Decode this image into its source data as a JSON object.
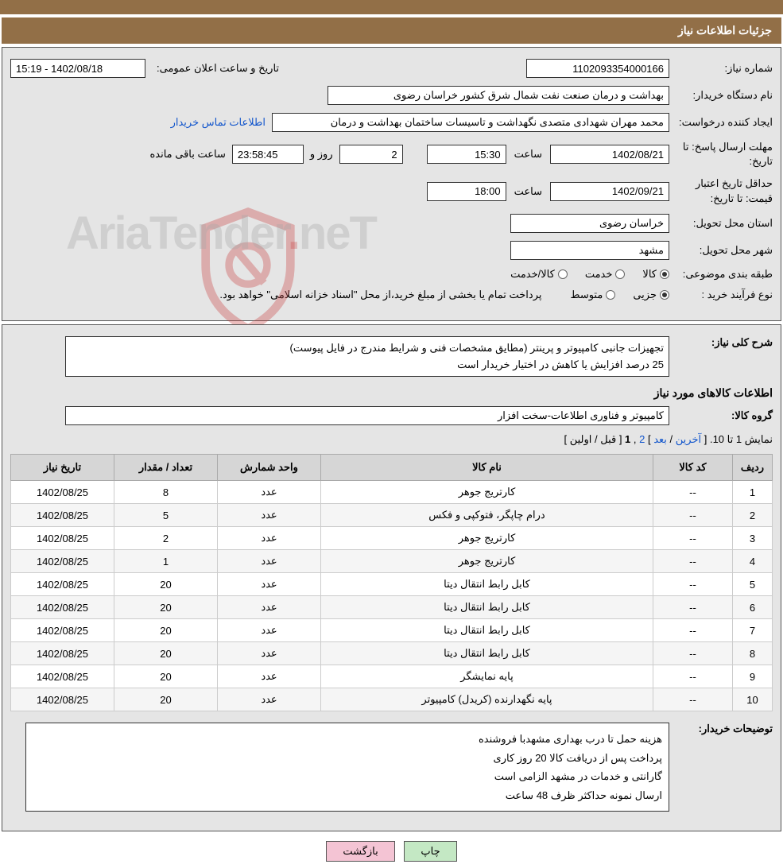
{
  "header": {
    "title": "جزئیات اطلاعات نیاز"
  },
  "labels": {
    "need_no": "شماره نیاز:",
    "announce_dt": "تاریخ و ساعت اعلان عمومی:",
    "buyer_org": "نام دستگاه خریدار:",
    "requester": "ایجاد کننده درخواست:",
    "contact_link": "اطلاعات تماس خریدار",
    "deadline": "مهلت ارسال پاسخ:",
    "to_date": "تا تاریخ:",
    "hour": "ساعت",
    "days_and": "روز و",
    "time_remaining": "ساعت باقی مانده",
    "min_validity": "حداقل تاریخ اعتبار قیمت:",
    "province": "استان محل تحویل:",
    "city": "شهر محل تحویل:",
    "category": "طبقه بندی موضوعی:",
    "cat_goods": "کالا",
    "cat_service": "خدمت",
    "cat_goods_service": "کالا/خدمت",
    "purchase_type": "نوع فرآیند خرید :",
    "pt_minor": "جزیی",
    "pt_medium": "متوسط",
    "payment_note": "پرداخت تمام یا بخشی از مبلغ خرید،از محل \"اسناد خزانه اسلامی\" خواهد بود.",
    "need_desc": "شرح کلی نیاز:",
    "goods_info_title": "اطلاعات کالاهای مورد نیاز",
    "goods_group": "گروه کالا:",
    "buyer_notes": "توضیحات خریدار:"
  },
  "fields": {
    "need_no": "1102093354000166",
    "announce_dt": "15:19 - 1402/08/18",
    "buyer_org": "بهداشت و درمان صنعت نفت شمال شرق کشور    خراسان رضوی",
    "requester": "محمد مهران شهدادی متصدی نگهداشت و تاسیسات ساختمان بهداشت و درمان",
    "deadline_date": "1402/08/21",
    "deadline_time": "15:30",
    "remaining_days": "2",
    "remaining_time": "23:58:45",
    "validity_date": "1402/09/21",
    "validity_time": "18:00",
    "province": "خراسان رضوی",
    "city": "مشهد",
    "need_desc": "تجهیزات جانبی  کامپیوتر و پرینتر (مطایق مشخصات فنی و شرایط مندرج در فایل پیوست)\n25 درصد افزایش یا کاهش در اختیار خریدار است",
    "goods_group": "کامپیوتر و فناوری اطلاعات-سخت افزار",
    "buyer_notes": "هزینه حمل تا درب بهداری مشهدبا فروشنده\nپرداخت پس از دریافت کالا  20 روز کاری\nگارانتی و خدمات در مشهد الزامی است\nارسال نمونه  حداکثر ظرف 48 ساعت"
  },
  "pagination": {
    "text_prefix": "نمایش 1 تا 10.",
    "first": "اولین",
    "prev": "قبل",
    "current": "1",
    "next": "2",
    "after": "بعد",
    "last": "آخرین"
  },
  "table": {
    "headers": {
      "row": "ردیف",
      "code": "کد کالا",
      "name": "نام کالا",
      "unit": "واحد شمارش",
      "qty": "تعداد / مقدار",
      "need_date": "تاریخ نیاز"
    },
    "rows": [
      {
        "row": "1",
        "code": "--",
        "name": "کارتریج جوهر",
        "unit": "عدد",
        "qty": "8",
        "date": "1402/08/25"
      },
      {
        "row": "2",
        "code": "--",
        "name": "درام چاپگر، فتوکپی و فکس",
        "unit": "عدد",
        "qty": "5",
        "date": "1402/08/25"
      },
      {
        "row": "3",
        "code": "--",
        "name": "کارتریج جوهر",
        "unit": "عدد",
        "qty": "2",
        "date": "1402/08/25"
      },
      {
        "row": "4",
        "code": "--",
        "name": "کارتریج جوهر",
        "unit": "عدد",
        "qty": "1",
        "date": "1402/08/25"
      },
      {
        "row": "5",
        "code": "--",
        "name": "کابل رابط انتقال دیتا",
        "unit": "عدد",
        "qty": "20",
        "date": "1402/08/25"
      },
      {
        "row": "6",
        "code": "--",
        "name": "کابل رابط انتقال دیتا",
        "unit": "عدد",
        "qty": "20",
        "date": "1402/08/25"
      },
      {
        "row": "7",
        "code": "--",
        "name": "کابل رابط انتقال دیتا",
        "unit": "عدد",
        "qty": "20",
        "date": "1402/08/25"
      },
      {
        "row": "8",
        "code": "--",
        "name": "کابل رابط انتقال دیتا",
        "unit": "عدد",
        "qty": "20",
        "date": "1402/08/25"
      },
      {
        "row": "9",
        "code": "--",
        "name": "پایه نمایشگر",
        "unit": "عدد",
        "qty": "20",
        "date": "1402/08/25"
      },
      {
        "row": "10",
        "code": "--",
        "name": "پایه نگهدارنده (کریدل) کامپیوتر",
        "unit": "عدد",
        "qty": "20",
        "date": "1402/08/25"
      }
    ]
  },
  "buttons": {
    "print": "چاپ",
    "back": "بازگشت"
  },
  "watermark": {
    "text1": "AriaTender",
    "text2": "neT"
  }
}
